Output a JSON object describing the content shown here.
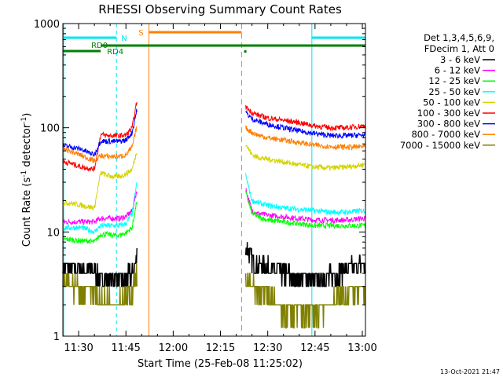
{
  "chart_data": {
    "type": "line",
    "title": "RHESSI Observing Summary Count Rates",
    "xlabel": "Start Time (25-Feb-08 11:25:02)",
    "ylabel_main": "Count Rate (s",
    "ylabel_sup": "-1",
    "ylabel_mid": " detector",
    "ylabel_end": ")",
    "timestamp": "13-Oct-2021 21:47",
    "y_scale": "log",
    "ylim": [
      1,
      1000
    ],
    "xlim_minutes_after_start": [
      0,
      96
    ],
    "x_ticks": [
      {
        "label": "11:30",
        "t": 5
      },
      {
        "label": "11:45",
        "t": 20
      },
      {
        "label": "12:00",
        "t": 35
      },
      {
        "label": "12:15",
        "t": 50
      },
      {
        "label": "12:30",
        "t": 65
      },
      {
        "label": "12:45",
        "t": 80
      },
      {
        "label": "13:00",
        "t": 95
      }
    ],
    "y_ticks": [
      {
        "label": "1",
        "v": 1
      },
      {
        "label": "10",
        "v": 10
      },
      {
        "label": "100",
        "v": 100
      },
      {
        "label": "1000",
        "v": 1000
      }
    ],
    "legend": {
      "header": [
        "Det 1,3,4,5,6,9,",
        "FDecim 1, Att 0"
      ],
      "placement": "right"
    },
    "flags": [
      {
        "label": "N",
        "color": "#00e5ee"
      },
      {
        "label": "S",
        "color": "#ff7f00"
      },
      {
        "label": "RD0",
        "color": "#008000"
      },
      {
        "label": "RD4",
        "color": "#008000"
      }
    ],
    "series": [
      {
        "name": "3 - 6 keV",
        "color": "#000000",
        "segments": [
          {
            "x": [
              0,
              2,
              4,
              6,
              8,
              10,
              12,
              14,
              16,
              18,
              20,
              22,
              23.5
            ],
            "y": [
              4.5,
              4.5,
              4.4,
              4.5,
              4.3,
              4.3,
              3.6,
              3.6,
              3.6,
              3.5,
              3.6,
              4.0,
              6
            ]
          },
          {
            "x": [
              58,
              60,
              62,
              65,
              68,
              70,
              75,
              80,
              85,
              88,
              90,
              92,
              95,
              96
            ],
            "y": [
              7.5,
              5.5,
              4.8,
              4.5,
              4.3,
              4.0,
              3.6,
              3.4,
              3.7,
              4.1,
              4.5,
              4.6,
              4.8,
              4.8
            ]
          }
        ]
      },
      {
        "name": "6 - 12 keV",
        "color": "#ff00ff",
        "segments": [
          {
            "x": [
              0,
              2,
              4,
              6,
              8,
              10,
              12,
              14,
              16,
              18,
              20,
              22,
              23.5
            ],
            "y": [
              12.5,
              12.5,
              12.5,
              12.5,
              12.5,
              12.5,
              13.5,
              13.5,
              13.5,
              13.5,
              14,
              16,
              25
            ]
          },
          {
            "x": [
              58,
              60,
              62,
              65,
              70,
              75,
              80,
              85,
              90,
              95,
              96
            ],
            "y": [
              26,
              16,
              15,
              14.5,
              14,
              13.5,
              13,
              13,
              13,
              13.5,
              13.5
            ]
          }
        ]
      },
      {
        "name": "12 - 25 keV",
        "color": "#00ff00",
        "segments": [
          {
            "x": [
              0,
              2,
              4,
              6,
              8,
              10,
              12,
              14,
              16,
              18,
              20,
              22,
              23.5
            ],
            "y": [
              8.5,
              8.5,
              8.3,
              8.2,
              8.2,
              8.0,
              9.5,
              9.5,
              9.3,
              9.3,
              9.8,
              11,
              20
            ]
          },
          {
            "x": [
              58,
              60,
              62,
              65,
              70,
              75,
              80,
              85,
              90,
              95,
              96
            ],
            "y": [
              24,
              15,
              14,
              13,
              12.5,
              12,
              11.5,
              11.5,
              11.5,
              11.5,
              11.5
            ]
          }
        ]
      },
      {
        "name": "25 - 50 keV",
        "color": "#00ffff",
        "segments": [
          {
            "x": [
              0,
              2,
              4,
              6,
              8,
              10,
              12,
              14,
              16,
              18,
              20,
              22,
              23.5
            ],
            "y": [
              11,
              11,
              11,
              11,
              10.5,
              10,
              11.5,
              11.5,
              11.5,
              11.5,
              12,
              15,
              30
            ]
          },
          {
            "x": [
              58,
              60,
              62,
              65,
              70,
              75,
              80,
              85,
              90,
              95,
              96
            ],
            "y": [
              35,
              20,
              19,
              18,
              17,
              16.5,
              16,
              15.5,
              15.5,
              16,
              16
            ]
          }
        ]
      },
      {
        "name": "50 - 100 keV",
        "color": "#d4d400",
        "segments": [
          {
            "x": [
              0,
              2,
              4,
              6,
              8,
              10,
              12,
              14,
              16,
              18,
              20,
              22,
              23.5
            ],
            "y": [
              19,
              19,
              18.5,
              18,
              17.5,
              17,
              37,
              35,
              34,
              34,
              36,
              40,
              60
            ]
          },
          {
            "x": [
              58,
              60,
              62,
              65,
              70,
              75,
              80,
              85,
              90,
              95,
              96
            ],
            "y": [
              70,
              55,
              52,
              50,
              47,
              44,
              42,
              41,
              42,
              44,
              45
            ]
          }
        ]
      },
      {
        "name": "100 - 300 keV",
        "color": "#ff0000",
        "segments": [
          {
            "x": [
              0,
              2,
              4,
              6,
              8,
              10,
              12,
              14,
              16,
              18,
              20,
              22,
              23.5
            ],
            "y": [
              47,
              46,
              44,
              42,
              41,
              40,
              86,
              84,
              84,
              84,
              85,
              100,
              180
            ]
          },
          {
            "x": [
              58,
              60,
              62,
              65,
              70,
              75,
              80,
              85,
              90,
              95,
              96
            ],
            "y": [
              158,
              140,
              132,
              124,
              118,
              112,
              104,
              100,
              100,
              104,
              106
            ]
          }
        ]
      },
      {
        "name": "300 - 800 keV",
        "color": "#0000ff",
        "segments": [
          {
            "x": [
              0,
              2,
              4,
              6,
              8,
              10,
              12,
              14,
              16,
              18,
              20,
              22,
              23.5
            ],
            "y": [
              67,
              66,
              64,
              62,
              58,
              55,
              75,
              74,
              74,
              74,
              76,
              90,
              150
            ]
          },
          {
            "x": [
              58,
              60,
              62,
              65,
              70,
              75,
              80,
              85,
              90,
              95,
              96
            ],
            "y": [
              140,
              122,
              115,
              108,
              100,
              93,
              88,
              84,
              84,
              85,
              85
            ]
          }
        ]
      },
      {
        "name": "800 - 7000 keV",
        "color": "#ff7f00",
        "segments": [
          {
            "x": [
              0,
              2,
              4,
              6,
              8,
              10,
              12,
              14,
              16,
              18,
              20,
              22,
              23.5
            ],
            "y": [
              63,
              60,
              57,
              54,
              51,
              48,
              54,
              53,
              53,
              53,
              55,
              65,
              105
            ]
          },
          {
            "x": [
              58,
              60,
              62,
              65,
              70,
              75,
              80,
              85,
              90,
              95,
              96
            ],
            "y": [
              100,
              90,
              85,
              80,
              76,
              72,
              68,
              66,
              65,
              66,
              66
            ]
          }
        ]
      },
      {
        "name": "7000 - 15000 keV",
        "color": "#808000",
        "segments": [
          {
            "x": [
              0,
              2,
              4,
              6,
              8,
              10,
              12,
              14,
              16,
              18,
              20,
              22,
              23.5
            ],
            "y": [
              3.0,
              3.0,
              3.0,
              2.9,
              2.9,
              2.6,
              2.2,
              2.2,
              2.3,
              2.2,
              2.3,
              2.6,
              4.0
            ]
          },
          {
            "x": [
              58,
              60,
              62,
              65,
              70,
              75,
              80,
              85,
              90,
              95,
              96
            ],
            "y": [
              3.5,
              3.0,
              2.6,
              2.5,
              1.6,
              1.6,
              1.6,
              2.0,
              2.6,
              2.8,
              2.8
            ]
          }
        ]
      }
    ]
  }
}
